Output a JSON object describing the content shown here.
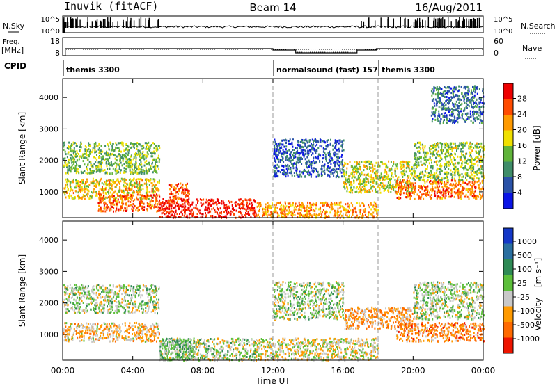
{
  "header": {
    "station": "Inuvik (fitACF)",
    "beam": "Beam 14",
    "date": "16/Aug/2011"
  },
  "aux_panels": {
    "nsky_label": "N.Sky",
    "nsky_ticks": [
      "10^5",
      "10^0"
    ],
    "nsearch_label": "N.Search",
    "freq_label_top": "Freq.",
    "freq_label_units": "[MHz]",
    "freq_ticks": [
      "18",
      "8"
    ],
    "nave_label": "Nave",
    "nave_ticks": [
      "60",
      "0"
    ],
    "cpid_label": "CPID",
    "cpid_segments": [
      {
        "label": "themis 3300",
        "start_hour": 0
      },
      {
        "label": "normalsound (fast) 157",
        "start_hour": 12
      },
      {
        "label": "themis 3300",
        "start_hour": 18
      }
    ]
  },
  "axes": {
    "xlabel": "Time UT",
    "xticks": [
      "00:00",
      "04:00",
      "08:00",
      "12:00",
      "16:00",
      "20:00",
      "00:00"
    ],
    "xlim_hours": [
      0,
      24
    ],
    "ylabel": "Slant Range [km]",
    "yticks": [
      1000,
      2000,
      3000,
      4000
    ],
    "ylim_km": [
      180,
      4600
    ]
  },
  "colorbars": {
    "power": {
      "label": "Power [dB]",
      "ticks": [
        "28",
        "24",
        "20",
        "16",
        "12",
        "8",
        "4"
      ],
      "colors": [
        "#0a14e6",
        "#2a52a8",
        "#3f8d69",
        "#60b43a",
        "#f0e000",
        "#ff9a00",
        "#ff4b00",
        "#ee0000"
      ]
    },
    "velocity": {
      "label": "Velocity",
      "units": "[m s⁻¹]",
      "ticks": [
        "1000",
        "500",
        "100",
        "25",
        "-25",
        "-100",
        "-500",
        "-1000"
      ],
      "colors": [
        "#1438c8",
        "#2a6fa0",
        "#2e8a55",
        "#5cbf3a",
        "#c8c8c8",
        "#ff9a00",
        "#ff6a00",
        "#ee1400"
      ]
    }
  },
  "chart_data": [
    {
      "type": "heatmap",
      "title": "Power",
      "xlabel": "Time UT",
      "ylabel": "Slant Range [km]",
      "x_range_hours": [
        0,
        24
      ],
      "y_range_km": [
        180,
        4600
      ],
      "colorbar_label": "Power [dB]",
      "colorbar_range_db": [
        0,
        32
      ],
      "scatter_regions": [
        {
          "t_start": 0.0,
          "t_end": 5.5,
          "r_min": 1600,
          "r_max": 2600,
          "value": 14
        },
        {
          "t_start": 0.0,
          "t_end": 5.5,
          "r_min": 800,
          "r_max": 1450,
          "value": 19
        },
        {
          "t_start": 2.0,
          "t_end": 5.5,
          "r_min": 400,
          "r_max": 950,
          "value": 25
        },
        {
          "t_start": 5.5,
          "t_end": 11.0,
          "r_min": 200,
          "r_max": 800,
          "value": 30
        },
        {
          "t_start": 6.0,
          "t_end": 7.2,
          "r_min": 700,
          "r_max": 1300,
          "value": 26
        },
        {
          "t_start": 11.0,
          "t_end": 18.0,
          "r_min": 200,
          "r_max": 700,
          "value": 22
        },
        {
          "t_start": 12.0,
          "t_end": 16.0,
          "r_min": 1500,
          "r_max": 2700,
          "value": 6
        },
        {
          "t_start": 16.0,
          "t_end": 20.0,
          "r_min": 1000,
          "r_max": 2000,
          "value": 17
        },
        {
          "t_start": 19.0,
          "t_end": 24.0,
          "r_min": 800,
          "r_max": 1400,
          "value": 25
        },
        {
          "t_start": 20.0,
          "t_end": 24.0,
          "r_min": 1400,
          "r_max": 2600,
          "value": 15
        },
        {
          "t_start": 21.0,
          "t_end": 24.0,
          "r_min": 3200,
          "r_max": 4400,
          "value": 8
        }
      ]
    },
    {
      "type": "heatmap",
      "title": "Velocity",
      "xlabel": "Time UT",
      "ylabel": "Slant Range [km]",
      "x_range_hours": [
        0,
        24
      ],
      "y_range_km": [
        180,
        4600
      ],
      "colorbar_label": "Velocity [m s⁻¹]",
      "colorbar_range": [
        -1000,
        1000
      ],
      "scatter_regions": [
        {
          "t_start": 0.0,
          "t_end": 5.5,
          "r_min": 1700,
          "r_max": 2600,
          "value": 0
        },
        {
          "t_start": 0.0,
          "t_end": 5.5,
          "r_min": 800,
          "r_max": 1400,
          "value": -300
        },
        {
          "t_start": 5.5,
          "t_end": 11.0,
          "r_min": 200,
          "r_max": 900,
          "value": 0
        },
        {
          "t_start": 5.5,
          "t_end": 7.5,
          "r_min": 200,
          "r_max": 900,
          "value": 150
        },
        {
          "t_start": 11.0,
          "t_end": 18.0,
          "r_min": 200,
          "r_max": 900,
          "value": -150
        },
        {
          "t_start": 12.0,
          "t_end": 16.0,
          "r_min": 1500,
          "r_max": 2700,
          "value": 0
        },
        {
          "t_start": 16.0,
          "t_end": 20.0,
          "r_min": 1200,
          "r_max": 1900,
          "value": -400
        },
        {
          "t_start": 19.0,
          "t_end": 24.0,
          "r_min": 800,
          "r_max": 1400,
          "value": -500
        },
        {
          "t_start": 20.0,
          "t_end": 24.0,
          "r_min": 1500,
          "r_max": 2700,
          "value": 0
        }
      ]
    }
  ]
}
